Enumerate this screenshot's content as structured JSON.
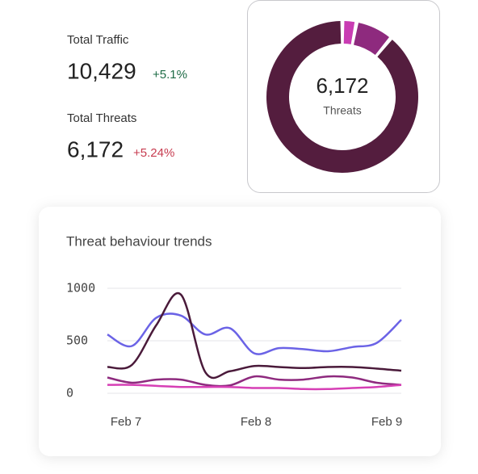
{
  "stats": [
    {
      "label": "Total Traffic",
      "value": "10,429",
      "change": "+5.1%"
    },
    {
      "label": "Total Threats",
      "value": "6,172",
      "change": "+5.24%"
    }
  ],
  "donut": {
    "center_value": "6,172",
    "center_label": "Threats",
    "values": [
      3,
      8,
      89
    ],
    "colors": [
      "#c93cb3",
      "#8e2a7e",
      "#541d3e"
    ]
  },
  "trend_chart": {
    "type": "line",
    "title": "Threat behaviour trends",
    "x_labels": [
      "Feb 7",
      "Feb 8",
      "Feb 9"
    ],
    "ylim": [
      0,
      1000
    ],
    "yticks": [
      0,
      500,
      1000
    ],
    "grid": true,
    "series": [
      {
        "color": "#6b63e6",
        "values": [
          560,
          450,
          720,
          740,
          560,
          620,
          380,
          430,
          420,
          400,
          440,
          480,
          700
        ]
      },
      {
        "color": "#4a1a3a",
        "values": [
          250,
          270,
          650,
          940,
          200,
          210,
          260,
          250,
          240,
          250,
          250,
          235,
          215
        ]
      },
      {
        "color": "#8e2a7e",
        "values": [
          150,
          100,
          130,
          130,
          80,
          75,
          160,
          130,
          130,
          160,
          150,
          100,
          80
        ]
      },
      {
        "color": "#d63fb5",
        "values": [
          80,
          80,
          70,
          60,
          60,
          60,
          50,
          50,
          40,
          40,
          50,
          60,
          80
        ]
      }
    ]
  }
}
